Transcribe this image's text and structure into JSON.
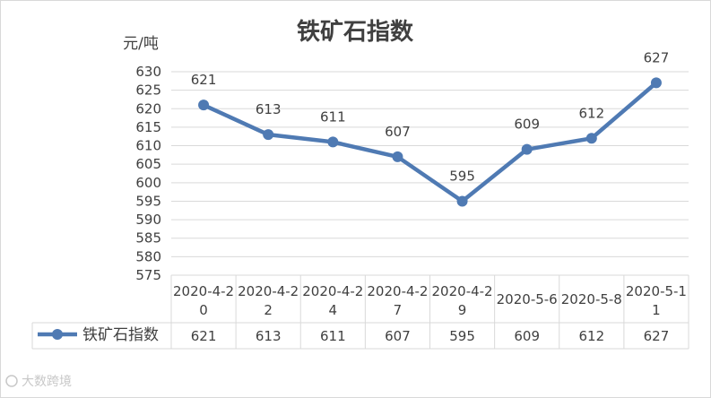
{
  "chart_data": {
    "type": "line",
    "title": "铁矿石指数",
    "ylabel": "元/吨",
    "categories": [
      [
        "2020-4-2",
        "0"
      ],
      [
        "2020-4-2",
        "2"
      ],
      [
        "2020-4-2",
        "4"
      ],
      [
        "2020-4-2",
        "7"
      ],
      [
        "2020-4-2",
        "9"
      ],
      [
        "2020-5-6"
      ],
      [
        "2020-5-8"
      ],
      [
        "2020-5-1",
        "1"
      ]
    ],
    "series": [
      {
        "name": "铁矿石指数",
        "values": [
          621,
          613,
          611,
          607,
          595,
          609,
          612,
          627
        ],
        "color": "#4f7ab3"
      }
    ],
    "ylim": [
      575,
      630
    ],
    "ytick_step": 5,
    "grid": true,
    "legend": "data-table-left",
    "data_labels": true
  },
  "watermark": "大数跨境"
}
